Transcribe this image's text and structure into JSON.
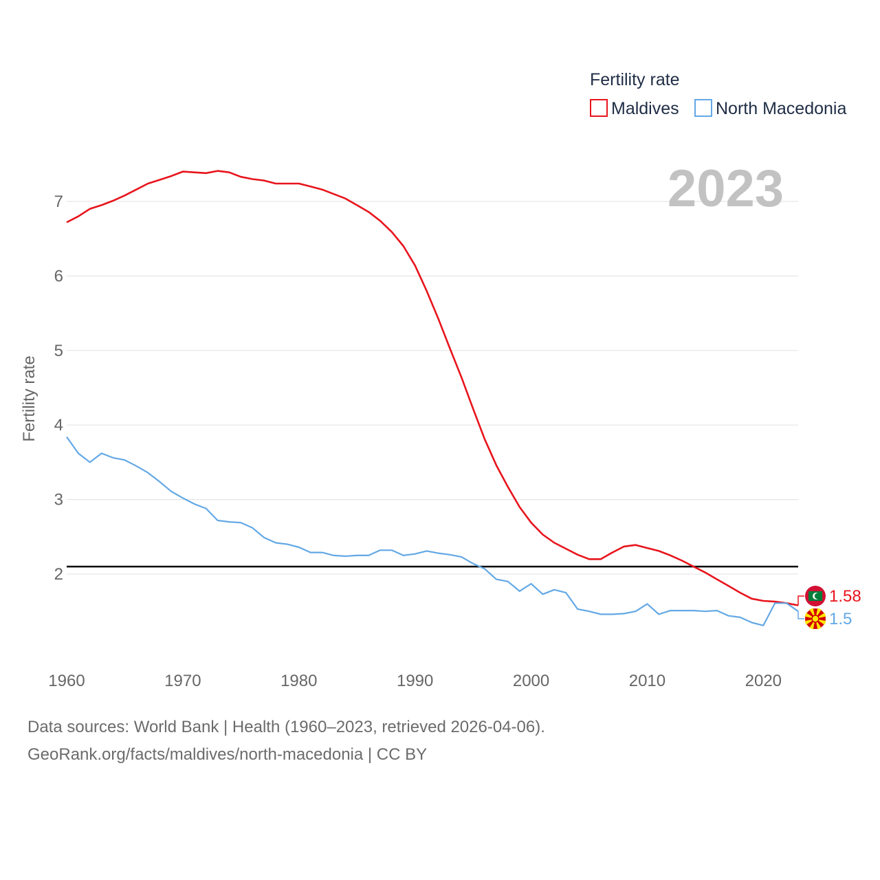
{
  "chart_data": {
    "type": "line",
    "ylabel": "Fertility rate",
    "xlabel": "",
    "legend": {
      "title": "Fertility rate",
      "position": "top-right"
    },
    "year_label": "2023",
    "xlim": [
      1960,
      2023
    ],
    "ylim": [
      0.85,
      7.6
    ],
    "xticks": [
      1960,
      1970,
      1980,
      1990,
      2000,
      2010,
      2020
    ],
    "yticks": [
      2,
      3,
      4,
      5,
      6,
      7
    ],
    "reference_line": {
      "y": 2.1,
      "color": "#000000"
    },
    "x": [
      1960,
      1961,
      1962,
      1963,
      1964,
      1965,
      1966,
      1967,
      1968,
      1969,
      1970,
      1971,
      1972,
      1973,
      1974,
      1975,
      1976,
      1977,
      1978,
      1979,
      1980,
      1981,
      1982,
      1983,
      1984,
      1985,
      1986,
      1987,
      1988,
      1989,
      1990,
      1991,
      1992,
      1993,
      1994,
      1995,
      1996,
      1997,
      1998,
      1999,
      2000,
      2001,
      2002,
      2003,
      2004,
      2005,
      2006,
      2007,
      2008,
      2009,
      2010,
      2011,
      2012,
      2013,
      2014,
      2015,
      2016,
      2017,
      2018,
      2019,
      2020,
      2021,
      2022,
      2023
    ],
    "series": [
      {
        "name": "Maldives",
        "color": "#e8141c",
        "end_label": "1.58",
        "flag": "maldives",
        "values": [
          6.72,
          6.8,
          6.9,
          6.95,
          7.01,
          7.08,
          7.16,
          7.24,
          7.29,
          7.34,
          7.4,
          7.39,
          7.38,
          7.41,
          7.39,
          7.33,
          7.3,
          7.28,
          7.24,
          7.24,
          7.24,
          7.2,
          7.16,
          7.1,
          7.04,
          6.95,
          6.86,
          6.74,
          6.59,
          6.4,
          6.14,
          5.8,
          5.43,
          5.03,
          4.64,
          4.22,
          3.81,
          3.46,
          3.17,
          2.9,
          2.69,
          2.53,
          2.42,
          2.34,
          2.26,
          2.2,
          2.2,
          2.29,
          2.37,
          2.39,
          2.35,
          2.31,
          2.25,
          2.18,
          2.1,
          2.02,
          1.93,
          1.84,
          1.75,
          1.67,
          1.64,
          1.63,
          1.61,
          1.58
        ]
      },
      {
        "name": "North Macedonia",
        "color": "#63a8e5",
        "end_label": "1.5",
        "flag": "north-macedonia",
        "values": [
          3.84,
          3.62,
          3.5,
          3.62,
          3.56,
          3.53,
          3.45,
          3.36,
          3.24,
          3.11,
          3.02,
          2.94,
          2.88,
          2.72,
          2.7,
          2.69,
          2.62,
          2.49,
          2.42,
          2.4,
          2.36,
          2.29,
          2.29,
          2.25,
          2.24,
          2.25,
          2.25,
          2.32,
          2.32,
          2.25,
          2.27,
          2.31,
          2.28,
          2.26,
          2.23,
          2.14,
          2.07,
          1.93,
          1.9,
          1.77,
          1.87,
          1.73,
          1.79,
          1.75,
          1.53,
          1.5,
          1.46,
          1.46,
          1.47,
          1.5,
          1.6,
          1.46,
          1.51,
          1.51,
          1.51,
          1.5,
          1.51,
          1.44,
          1.42,
          1.35,
          1.31,
          1.61,
          1.61,
          1.5
        ]
      }
    ]
  },
  "footer": {
    "line1": "Data sources: World Bank | Health (1960–2023, retrieved 2026-04-06).",
    "line2": "GeoRank.org/facts/maldives/north-macedonia | CC BY"
  }
}
